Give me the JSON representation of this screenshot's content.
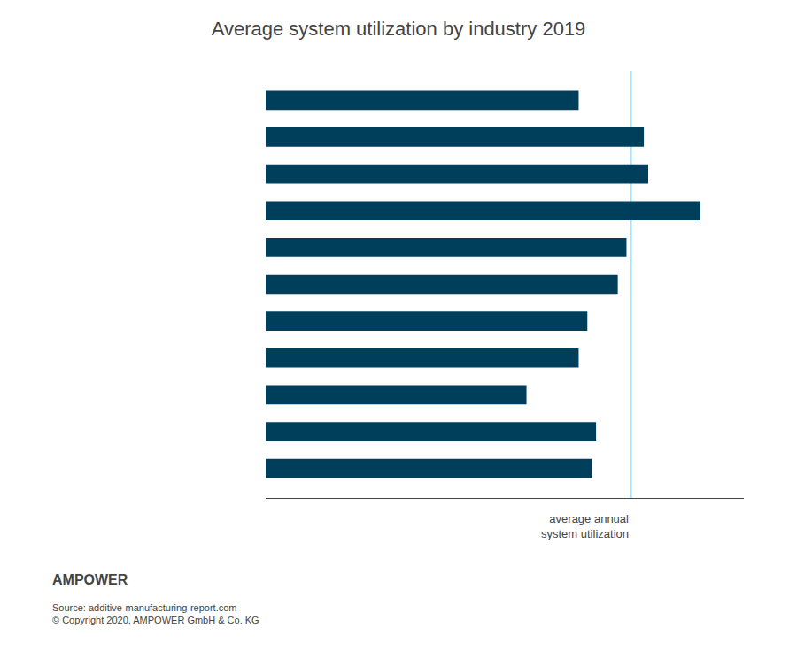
{
  "chart_data": {
    "type": "bar",
    "orientation": "horizontal",
    "title": "Average system utilization by industry 2019",
    "categories": [
      null,
      null,
      null,
      null,
      null,
      null,
      null,
      null,
      null,
      null,
      null
    ],
    "values": [
      72,
      87,
      88,
      100,
      83,
      81,
      74,
      72,
      60,
      76,
      75
    ],
    "color": "#003f5c",
    "xlim": [
      0,
      110
    ],
    "tick_labels": false,
    "grid": false,
    "annotations": [
      {
        "text": "average annual\nsystem utilization",
        "x": 84,
        "color": "#87ceeb"
      },
      {
        "text": "AMPOWER"
      },
      {
        "text": "Source: additive-manufacturing-report.com\n© Copyright 2020, AMPOWER GmbH & Co. KG"
      }
    ]
  }
}
